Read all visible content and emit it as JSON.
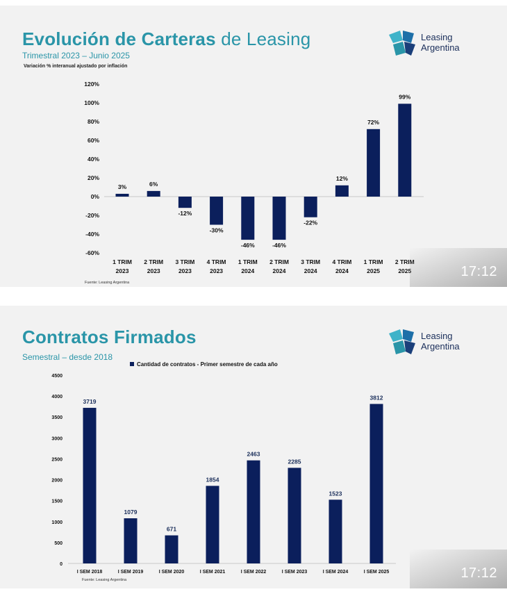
{
  "slides": [
    {
      "title_bold": "Evolución de Carteras",
      "title_light": "de Leasing",
      "subtitle": "Trimestral 2023 – Junio 2025",
      "note": "Variación % interanual ajustado por inflación",
      "logo": {
        "line1": "Leasing",
        "line2": "Argentina",
        "icon": "leasing-argentina-logo-icon"
      },
      "source": "Fuente: Leasing Argentina",
      "time": "17:12"
    },
    {
      "title_bold": "Contratos Firmados",
      "subtitle": "Semestral – desde 2018",
      "logo": {
        "line1": "Leasing",
        "line2": "Argentina",
        "icon": "leasing-argentina-logo-icon"
      },
      "source": "Fuente: Leasing Argentina",
      "time": "17:12"
    }
  ],
  "chart_data": [
    {
      "type": "bar",
      "categories": [
        [
          "1 TRIM",
          "2023"
        ],
        [
          "2 TRIM",
          "2023"
        ],
        [
          "3 TRIM",
          "2023"
        ],
        [
          "4 TRIM",
          "2023"
        ],
        [
          "1 TRIM",
          "2024"
        ],
        [
          "2 TRIM",
          "2024"
        ],
        [
          "3 TRIM",
          "2024"
        ],
        [
          "4 TRIM",
          "2024"
        ],
        [
          "1 TRIM",
          "2025"
        ],
        [
          "2 TRIM",
          "2025"
        ]
      ],
      "values": [
        3,
        6,
        -12,
        -30,
        -46,
        -46,
        -22,
        12,
        72,
        99
      ],
      "data_labels": [
        "3%",
        "6%",
        "-12%",
        "-30%",
        "-46%",
        "-46%",
        "-22%",
        "12%",
        "72%",
        "99%"
      ],
      "yticks": [
        "120%",
        "100%",
        "80%",
        "60%",
        "40%",
        "20%",
        "0%",
        "-20%",
        "-40%",
        "-60%"
      ],
      "ylim": [
        -60,
        120
      ],
      "ystep": 20,
      "grid": false,
      "color": "#0b1f5c"
    },
    {
      "type": "bar",
      "legend": "Cantidad de contratos - Primer semestre de cada año",
      "legend_position": "top",
      "categories": [
        "I SEM 2018",
        "I SEM 2019",
        "I SEM 2020",
        "I SEM 2021",
        "I SEM 2022",
        "I SEM 2023",
        "I SEM 2024",
        "I SEM 2025"
      ],
      "values": [
        3719,
        1079,
        671,
        1854,
        2463,
        2285,
        1523,
        3812
      ],
      "yticks": [
        "4500",
        "4000",
        "3500",
        "3000",
        "2500",
        "2000",
        "1500",
        "1000",
        "500",
        "0"
      ],
      "ylim": [
        0,
        4500
      ],
      "ystep": 500,
      "grid": false,
      "color": "#0b1f5c"
    }
  ]
}
